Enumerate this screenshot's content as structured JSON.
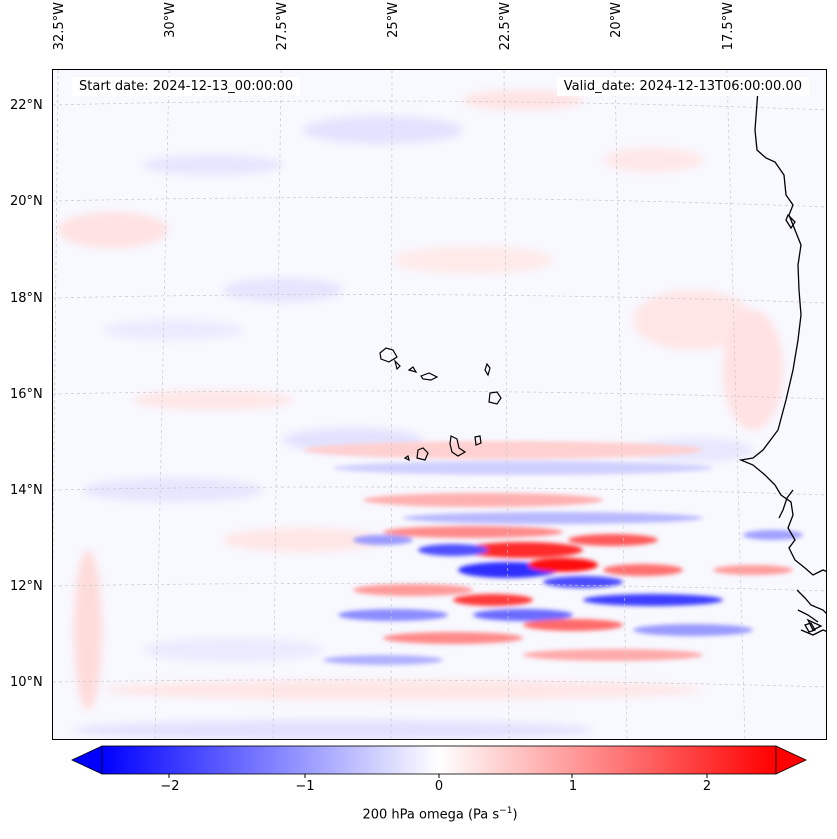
{
  "map": {
    "start_date": "Start date: 2024-12-13_00:00:00",
    "valid_date": "Valid_date: 2024-12-13T06:00:00.00",
    "longitude_labels": [
      "32.5°W",
      "30°W",
      "27.5°W",
      "25°W",
      "22.5°W",
      "20°W",
      "17.5°W"
    ],
    "latitude_labels": [
      "22°N",
      "20°N",
      "18°N",
      "16°N",
      "14°N",
      "12°N",
      "10°N"
    ],
    "field": "200 hPa omega",
    "extent": {
      "lon_min": -33,
      "lon_max": -16,
      "lat_min": 8.9,
      "lat_max": 22.8
    }
  },
  "colorbar": {
    "ticks": [
      "−2",
      "−1",
      "0",
      "1",
      "2"
    ],
    "label_prefix": "200 hPa omega (Pa s",
    "label_exponent": "−1",
    "label_suffix": ")",
    "vmin": -2.6,
    "vmax": 2.6,
    "colormap": "bwr",
    "colors": {
      "min": "#0000ff",
      "mid": "#ffffff",
      "max": "#ff0000"
    }
  }
}
